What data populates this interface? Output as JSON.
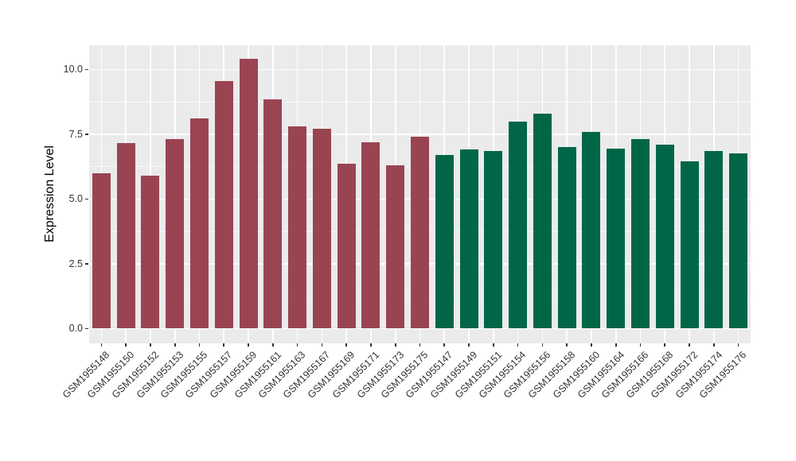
{
  "chart_data": {
    "type": "bar",
    "title": "",
    "xlabel": "",
    "ylabel": "Expression Level",
    "ylim": [
      0,
      10.95
    ],
    "yticks": [
      0,
      2.5,
      5,
      7.5,
      10
    ],
    "ytick_labels": [
      "0.0",
      "2.5",
      "5.0",
      "7.5",
      "10.0"
    ],
    "minor_yticks": [
      1.25,
      3.75,
      6.25,
      8.75
    ],
    "grid": "white major+minor horizontal lines and major vertical lines on grey panel",
    "legend_position": "none",
    "panel_bg": "#EBEBEB",
    "grid_color": "#FFFFFF",
    "axis_text_color": "#333333",
    "group_colors": [
      "#9A4452",
      "#016648"
    ],
    "categories": [
      "GSM1955148",
      "GSM1955150",
      "GSM1955152",
      "GSM1955153",
      "GSM1955155",
      "GSM1955157",
      "GSM1955159",
      "GSM1955161",
      "GSM1955163",
      "GSM1955167",
      "GSM1955169",
      "GSM1955171",
      "GSM1955173",
      "GSM1955175",
      "GSM1955147",
      "GSM1955149",
      "GSM1955151",
      "GSM1955154",
      "GSM1955156",
      "GSM1955158",
      "GSM1955160",
      "GSM1955164",
      "GSM1955166",
      "GSM1955168",
      "GSM1955172",
      "GSM1955174",
      "GSM1955176"
    ],
    "values": [
      6.0,
      7.15,
      5.9,
      7.3,
      8.1,
      9.55,
      10.4,
      8.85,
      7.8,
      7.7,
      6.35,
      7.2,
      6.3,
      7.4,
      6.7,
      6.9,
      6.85,
      8.0,
      8.3,
      7.0,
      7.6,
      6.95,
      7.3,
      7.1,
      6.45,
      6.85,
      6.75
    ],
    "bar_groups": [
      0,
      0,
      0,
      0,
      0,
      0,
      0,
      0,
      0,
      0,
      0,
      0,
      0,
      0,
      1,
      1,
      1,
      1,
      1,
      1,
      1,
      1,
      1,
      1,
      1,
      1,
      1
    ]
  }
}
